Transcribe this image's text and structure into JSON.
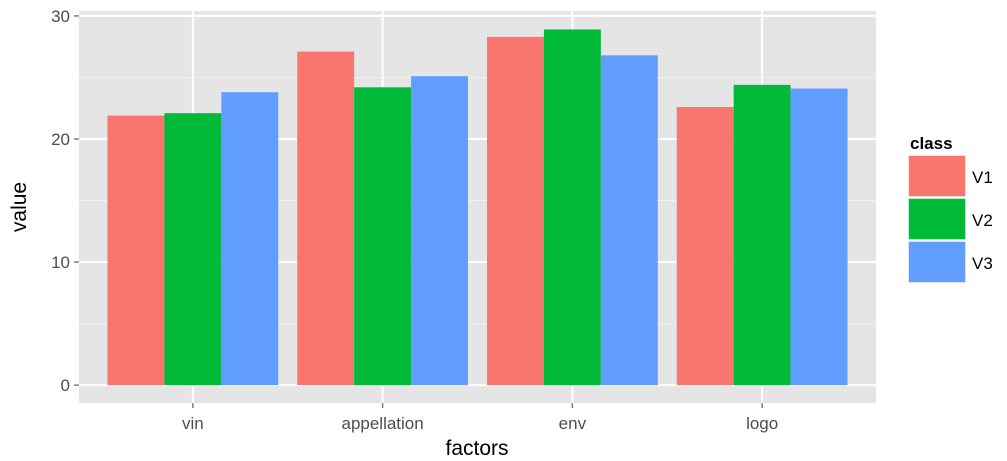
{
  "chart_data": {
    "type": "bar",
    "categories": [
      "vin",
      "appellation",
      "env",
      "logo"
    ],
    "series": [
      {
        "name": "V1",
        "values": [
          21.9,
          27.1,
          28.3,
          22.6
        ],
        "color": "#F8766D"
      },
      {
        "name": "V2",
        "values": [
          22.1,
          24.2,
          28.9,
          24.4
        ],
        "color": "#00BA38"
      },
      {
        "name": "V3",
        "values": [
          23.8,
          25.1,
          26.8,
          24.1
        ],
        "color": "#619CFF"
      }
    ],
    "xlabel": "factors",
    "ylabel": "value",
    "ylim": [
      -1.45,
      30.4
    ],
    "yticks": [
      0,
      10,
      20,
      30
    ],
    "legend_title": "class",
    "legend_position": "right",
    "grid": true,
    "panel_color": "#E5E5E5"
  }
}
